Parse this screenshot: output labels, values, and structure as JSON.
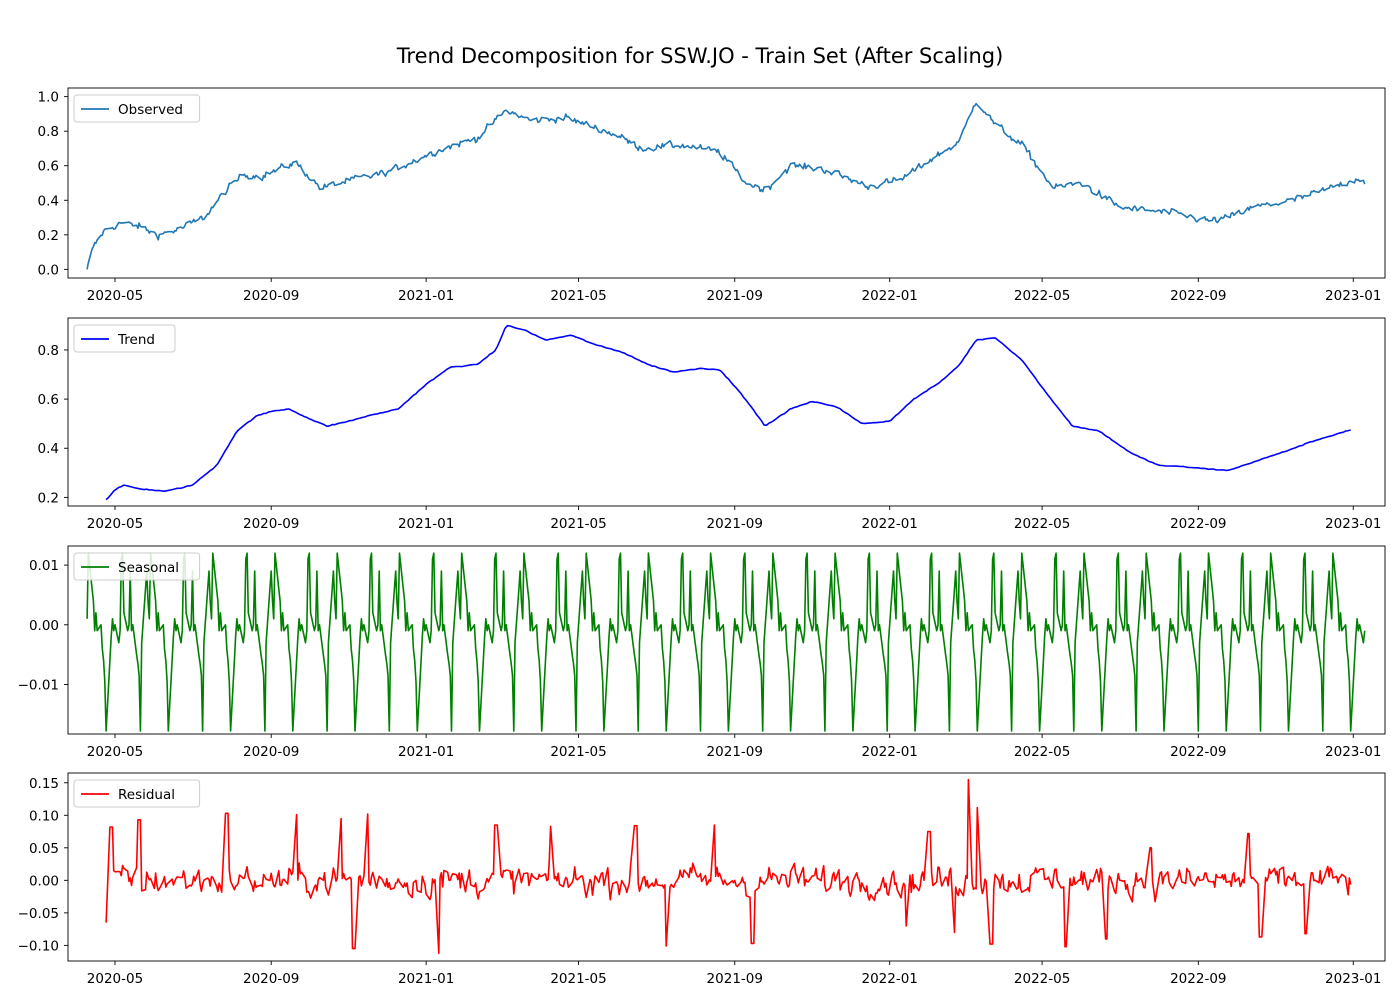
{
  "title": "Trend Decomposition for SSW.JO - Train Set (After Scaling)",
  "chart_data": [
    {
      "type": "line",
      "series": [
        {
          "name": "Observed",
          "color": "#1f77b4"
        }
      ],
      "x_range": [
        "2020-04-09",
        "2023-01-10"
      ],
      "xlim": [
        "2020-03-25",
        "2023-01-26"
      ],
      "ylim": [
        -0.05,
        1.05
      ],
      "yticks": [
        0.0,
        0.2,
        0.4,
        0.6,
        0.8,
        1.0
      ],
      "ytick_labels": [
        "0.0",
        "0.2",
        "0.4",
        "0.6",
        "0.8",
        "1.0"
      ],
      "xticks": [
        "2020-05",
        "2020-09",
        "2021-01",
        "2021-05",
        "2021-09",
        "2022-01",
        "2022-05",
        "2022-09",
        "2023-01"
      ],
      "anchors": [
        [
          "2020-04-09",
          0.0
        ],
        [
          "2020-04-14",
          0.13
        ],
        [
          "2020-04-22",
          0.22
        ],
        [
          "2020-05-05",
          0.27
        ],
        [
          "2020-05-20",
          0.25
        ],
        [
          "2020-06-03",
          0.2
        ],
        [
          "2020-06-20",
          0.23
        ],
        [
          "2020-07-10",
          0.3
        ],
        [
          "2020-07-28",
          0.46
        ],
        [
          "2020-08-10",
          0.55
        ],
        [
          "2020-08-25",
          0.54
        ],
        [
          "2020-09-20",
          0.62
        ],
        [
          "2020-10-10",
          0.47
        ],
        [
          "2020-11-05",
          0.52
        ],
        [
          "2020-12-01",
          0.56
        ],
        [
          "2021-01-10",
          0.69
        ],
        [
          "2021-02-10",
          0.76
        ],
        [
          "2021-03-05",
          0.92
        ],
        [
          "2021-03-25",
          0.86
        ],
        [
          "2021-04-20",
          0.88
        ],
        [
          "2021-05-30",
          0.78
        ],
        [
          "2021-06-20",
          0.7
        ],
        [
          "2021-07-20",
          0.72
        ],
        [
          "2021-08-20",
          0.68
        ],
        [
          "2021-09-10",
          0.5
        ],
        [
          "2021-09-25",
          0.46
        ],
        [
          "2021-10-15",
          0.6
        ],
        [
          "2021-11-10",
          0.58
        ],
        [
          "2021-12-15",
          0.48
        ],
        [
          "2022-01-10",
          0.52
        ],
        [
          "2022-02-01",
          0.63
        ],
        [
          "2022-02-25",
          0.74
        ],
        [
          "2022-03-10",
          0.98
        ],
        [
          "2022-03-25",
          0.84
        ],
        [
          "2022-04-15",
          0.72
        ],
        [
          "2022-05-10",
          0.47
        ],
        [
          "2022-06-01",
          0.5
        ],
        [
          "2022-07-01",
          0.36
        ],
        [
          "2022-07-25",
          0.34
        ],
        [
          "2022-08-15",
          0.32
        ],
        [
          "2022-09-10",
          0.28
        ],
        [
          "2022-09-25",
          0.3
        ],
        [
          "2022-10-15",
          0.36
        ],
        [
          "2022-11-15",
          0.4
        ],
        [
          "2022-12-10",
          0.46
        ],
        [
          "2023-01-05",
          0.53
        ],
        [
          "2023-01-10",
          0.51
        ]
      ],
      "noise": 0.035
    },
    {
      "type": "line",
      "series": [
        {
          "name": "Trend",
          "color": "#0000ff"
        }
      ],
      "x_range": [
        "2020-04-24",
        "2022-12-30"
      ],
      "xlim": [
        "2020-03-25",
        "2023-01-26"
      ],
      "ylim": [
        0.165,
        0.93
      ],
      "yticks": [
        0.2,
        0.4,
        0.6,
        0.8
      ],
      "ytick_labels": [
        "0.2",
        "0.4",
        "0.6",
        "0.8"
      ],
      "xticks": [
        "2020-05",
        "2020-09",
        "2021-01",
        "2021-05",
        "2021-09",
        "2022-01",
        "2022-05",
        "2022-09",
        "2023-01"
      ],
      "anchors": [
        [
          "2020-04-24",
          0.19
        ],
        [
          "2020-05-01",
          0.23
        ],
        [
          "2020-05-08",
          0.25
        ],
        [
          "2020-05-20",
          0.235
        ],
        [
          "2020-06-10",
          0.225
        ],
        [
          "2020-07-01",
          0.25
        ],
        [
          "2020-07-20",
          0.33
        ],
        [
          "2020-08-05",
          0.47
        ],
        [
          "2020-08-20",
          0.53
        ],
        [
          "2020-09-01",
          0.55
        ],
        [
          "2020-09-15",
          0.56
        ],
        [
          "2020-10-01",
          0.52
        ],
        [
          "2020-10-15",
          0.49
        ],
        [
          "2020-11-01",
          0.51
        ],
        [
          "2020-11-15",
          0.53
        ],
        [
          "2020-12-10",
          0.56
        ],
        [
          "2021-01-01",
          0.66
        ],
        [
          "2021-01-20",
          0.73
        ],
        [
          "2021-02-10",
          0.74
        ],
        [
          "2021-02-25",
          0.8
        ],
        [
          "2021-03-05",
          0.9
        ],
        [
          "2021-03-20",
          0.88
        ],
        [
          "2021-04-05",
          0.84
        ],
        [
          "2021-04-25",
          0.86
        ],
        [
          "2021-05-15",
          0.82
        ],
        [
          "2021-06-05",
          0.79
        ],
        [
          "2021-06-25",
          0.74
        ],
        [
          "2021-07-15",
          0.71
        ],
        [
          "2021-08-05",
          0.725
        ],
        [
          "2021-08-20",
          0.72
        ],
        [
          "2021-09-05",
          0.63
        ],
        [
          "2021-09-25",
          0.49
        ],
        [
          "2021-10-15",
          0.56
        ],
        [
          "2021-11-01",
          0.59
        ],
        [
          "2021-11-20",
          0.57
        ],
        [
          "2021-12-10",
          0.5
        ],
        [
          "2022-01-01",
          0.51
        ],
        [
          "2022-01-20",
          0.6
        ],
        [
          "2022-02-10",
          0.67
        ],
        [
          "2022-02-25",
          0.74
        ],
        [
          "2022-03-10",
          0.84
        ],
        [
          "2022-03-25",
          0.85
        ],
        [
          "2022-04-15",
          0.76
        ],
        [
          "2022-05-05",
          0.62
        ],
        [
          "2022-05-25",
          0.49
        ],
        [
          "2022-06-15",
          0.47
        ],
        [
          "2022-07-10",
          0.38
        ],
        [
          "2022-08-01",
          0.33
        ],
        [
          "2022-08-20",
          0.325
        ],
        [
          "2022-09-10",
          0.315
        ],
        [
          "2022-09-25",
          0.31
        ],
        [
          "2022-10-15",
          0.345
        ],
        [
          "2022-11-10",
          0.39
        ],
        [
          "2022-12-01",
          0.43
        ],
        [
          "2022-12-30",
          0.475
        ]
      ]
    },
    {
      "type": "line",
      "series": [
        {
          "name": "Seasonal",
          "color": "#008000"
        }
      ],
      "x_range": [
        "2020-04-09",
        "2023-01-10"
      ],
      "xlim": [
        "2020-03-25",
        "2023-01-26"
      ],
      "ylim": [
        -0.0183,
        0.0132
      ],
      "yticks": [
        -0.01,
        0.0,
        0.01
      ],
      "ytick_labels": [
        "−0.01",
        "0.00",
        "0.01"
      ],
      "xticks": [
        "2020-05",
        "2020-09",
        "2021-01",
        "2021-05",
        "2021-09",
        "2022-01",
        "2022-05",
        "2022-09",
        "2023-01"
      ],
      "cycle_days": 35,
      "pattern": [
        0.001,
        0.012,
        0.006,
        0.004,
        -0.001,
        0.002,
        -0.001,
        0.0,
        -0.004,
        -0.006,
        -0.0095,
        -0.0178,
        -0.006,
        -0.002,
        0.001,
        -0.001,
        0.0,
        -0.003,
        -0.001,
        0.011,
        0.012,
        0.002,
        -0.001,
        0.0,
        0.009,
        -0.001,
        0.0,
        -0.005,
        -0.0065,
        -0.0085,
        -0.0178,
        -0.003,
        0.006,
        0.009,
        0.004
      ]
    },
    {
      "type": "line",
      "series": [
        {
          "name": "Residual",
          "color": "#ff0000"
        }
      ],
      "x_range": [
        "2020-04-24",
        "2022-12-30"
      ],
      "xlim": [
        "2020-03-25",
        "2023-01-26"
      ],
      "ylim": [
        -0.124,
        0.165
      ],
      "yticks": [
        -0.1,
        -0.05,
        0.0,
        0.05,
        0.1,
        0.15
      ],
      "ytick_labels": [
        "−0.10",
        "−0.05",
        "0.00",
        "0.05",
        "0.10",
        "0.15"
      ],
      "xticks": [
        "2020-05",
        "2020-09",
        "2021-01",
        "2021-05",
        "2021-09",
        "2022-01",
        "2022-05",
        "2022-09",
        "2023-01"
      ],
      "amplitude": 0.035,
      "spikes": [
        [
          "2020-04-25",
          -0.065
        ],
        [
          "2020-04-28",
          0.082
        ],
        [
          "2020-05-20",
          0.093
        ],
        [
          "2020-07-28",
          0.103
        ],
        [
          "2020-09-20",
          0.101
        ],
        [
          "2020-10-25",
          0.095
        ],
        [
          "2020-11-05",
          -0.105
        ],
        [
          "2020-11-15",
          0.102
        ],
        [
          "2021-01-10",
          -0.112
        ],
        [
          "2021-02-25",
          0.085
        ],
        [
          "2021-04-10",
          0.083
        ],
        [
          "2021-06-15",
          0.084
        ],
        [
          "2021-07-10",
          -0.101
        ],
        [
          "2021-08-15",
          0.085
        ],
        [
          "2021-09-15",
          -0.097
        ],
        [
          "2022-01-15",
          -0.07
        ],
        [
          "2022-02-01",
          0.075
        ],
        [
          "2022-02-20",
          -0.08
        ],
        [
          "2022-03-05",
          0.155
        ],
        [
          "2022-03-12",
          0.112
        ],
        [
          "2022-03-22",
          -0.098
        ],
        [
          "2022-05-20",
          -0.102
        ],
        [
          "2022-06-20",
          -0.09
        ],
        [
          "2022-07-25",
          0.05
        ],
        [
          "2022-10-10",
          0.072
        ],
        [
          "2022-10-20",
          -0.087
        ],
        [
          "2022-11-25",
          -0.082
        ]
      ]
    }
  ]
}
